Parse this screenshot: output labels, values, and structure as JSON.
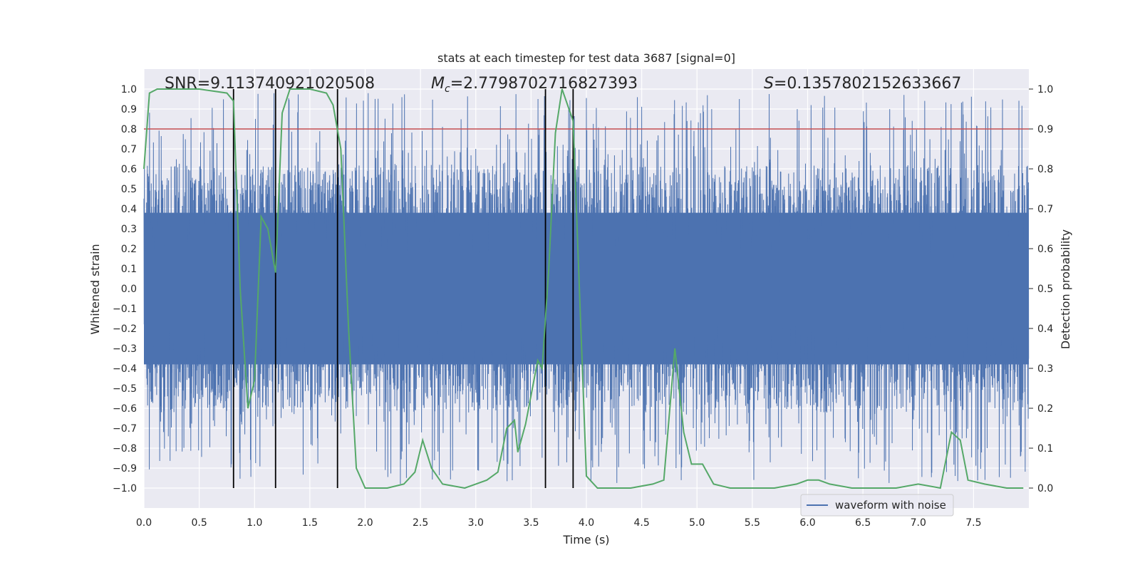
{
  "chart_data": {
    "type": "line",
    "title": "stats at each timestep for test data 3687 [signal=0]",
    "xlabel": "Time (s)",
    "ylabel": "Whitened strain",
    "y2label": "Detection probability",
    "xlim": [
      0,
      8.0
    ],
    "ylim": [
      -1.1,
      1.1
    ],
    "y2lim": [
      -0.05,
      1.05
    ],
    "xticks": [
      0.0,
      0.5,
      1.0,
      1.5,
      2.0,
      2.5,
      3.0,
      3.5,
      4.0,
      4.5,
      5.0,
      5.5,
      6.0,
      6.5,
      7.0,
      7.5
    ],
    "xtick_labels": [
      "0.0",
      "0.5",
      "1.0",
      "1.5",
      "2.0",
      "2.5",
      "3.0",
      "3.5",
      "4.0",
      "4.5",
      "5.0",
      "5.5",
      "6.0",
      "6.5",
      "7.0",
      "7.5"
    ],
    "yticks": [
      1.0,
      0.9,
      0.8,
      0.7,
      0.6,
      0.5,
      0.4,
      0.3,
      0.2,
      0.1,
      0.0,
      -0.1,
      -0.2,
      -0.3,
      -0.4,
      -0.5,
      -0.6,
      -0.7,
      -0.8,
      -0.9,
      -1.0
    ],
    "ytick_labels": [
      "1.0",
      "0.9",
      "0.8",
      "0.7",
      "0.6",
      "0.5",
      "0.4",
      "0.3",
      "0.2",
      "0.1",
      "0.0",
      "−0.1",
      "−0.2",
      "−0.3",
      "−0.4",
      "−0.5",
      "−0.6",
      "−0.7",
      "−0.8",
      "−0.9",
      "−1.0"
    ],
    "y2ticks": [
      1.0,
      0.9,
      0.8,
      0.7,
      0.6,
      0.5,
      0.4,
      0.3,
      0.2,
      0.1,
      0.0
    ],
    "y2tick_labels": [
      "1.0",
      "0.9",
      "0.8",
      "0.7",
      "0.6",
      "0.5",
      "0.4",
      "0.3",
      "0.2",
      "0.1",
      "0.0"
    ],
    "grid": true,
    "annotations": {
      "snr": "SNR=9.113740921020508",
      "mc_symbol": "M",
      "mc_sub": "c",
      "mc_value": "=2.7798702716827393",
      "s_symbol": "S",
      "s_value": "=0.1357802152633667"
    },
    "legend": {
      "entries": [
        "waveform with noise"
      ],
      "location": "lower right"
    },
    "threshold_y2": 0.9,
    "vertical_lines_x": [
      0.81,
      1.19,
      1.75,
      3.63,
      3.88
    ],
    "waveform": {
      "name": "waveform with noise",
      "sample_count": 4096,
      "x_range": [
        0,
        8.0
      ],
      "core_amplitude": 0.38,
      "spike_max": 0.98,
      "spike_min": -0.99
    },
    "series": [
      {
        "name": "detection probability",
        "axis": "right",
        "x": [
          0.0,
          0.05,
          0.12,
          0.25,
          0.5,
          0.75,
          0.81,
          0.87,
          0.94,
          1.0,
          1.06,
          1.12,
          1.19,
          1.25,
          1.32,
          1.5,
          1.65,
          1.71,
          1.78,
          1.85,
          1.92,
          2.0,
          2.2,
          2.35,
          2.45,
          2.52,
          2.6,
          2.7,
          2.9,
          3.0,
          3.1,
          3.2,
          3.28,
          3.35,
          3.38,
          3.45,
          3.56,
          3.6,
          3.66,
          3.72,
          3.78,
          3.88,
          4.0,
          4.1,
          4.2,
          4.4,
          4.6,
          4.7,
          4.8,
          4.88,
          4.95,
          5.05,
          5.15,
          5.3,
          5.5,
          5.7,
          5.9,
          6.0,
          6.1,
          6.2,
          6.4,
          6.6,
          6.8,
          7.0,
          7.2,
          7.3,
          7.38,
          7.45,
          7.6,
          7.8,
          7.95
        ],
        "values": [
          0.8,
          0.99,
          1.0,
          1.0,
          1.0,
          0.99,
          0.97,
          0.5,
          0.2,
          0.27,
          0.68,
          0.65,
          0.54,
          0.94,
          1.0,
          1.0,
          0.99,
          0.96,
          0.85,
          0.4,
          0.05,
          0.0,
          0.0,
          0.01,
          0.04,
          0.12,
          0.05,
          0.01,
          0.0,
          0.01,
          0.02,
          0.04,
          0.15,
          0.17,
          0.09,
          0.16,
          0.32,
          0.3,
          0.55,
          0.89,
          1.0,
          0.92,
          0.03,
          0.0,
          0.0,
          0.0,
          0.01,
          0.02,
          0.35,
          0.14,
          0.06,
          0.06,
          0.01,
          0.0,
          0.0,
          0.0,
          0.01,
          0.02,
          0.02,
          0.01,
          0.0,
          0.0,
          0.0,
          0.01,
          0.0,
          0.14,
          0.12,
          0.02,
          0.01,
          0.0,
          0.0
        ]
      }
    ],
    "colors": {
      "background": "#eaeaf2",
      "grid": "#ffffff",
      "waveform": "#4c72b0",
      "probability": "#55a868",
      "threshold": "#c44e52",
      "vline": "#000000"
    }
  }
}
